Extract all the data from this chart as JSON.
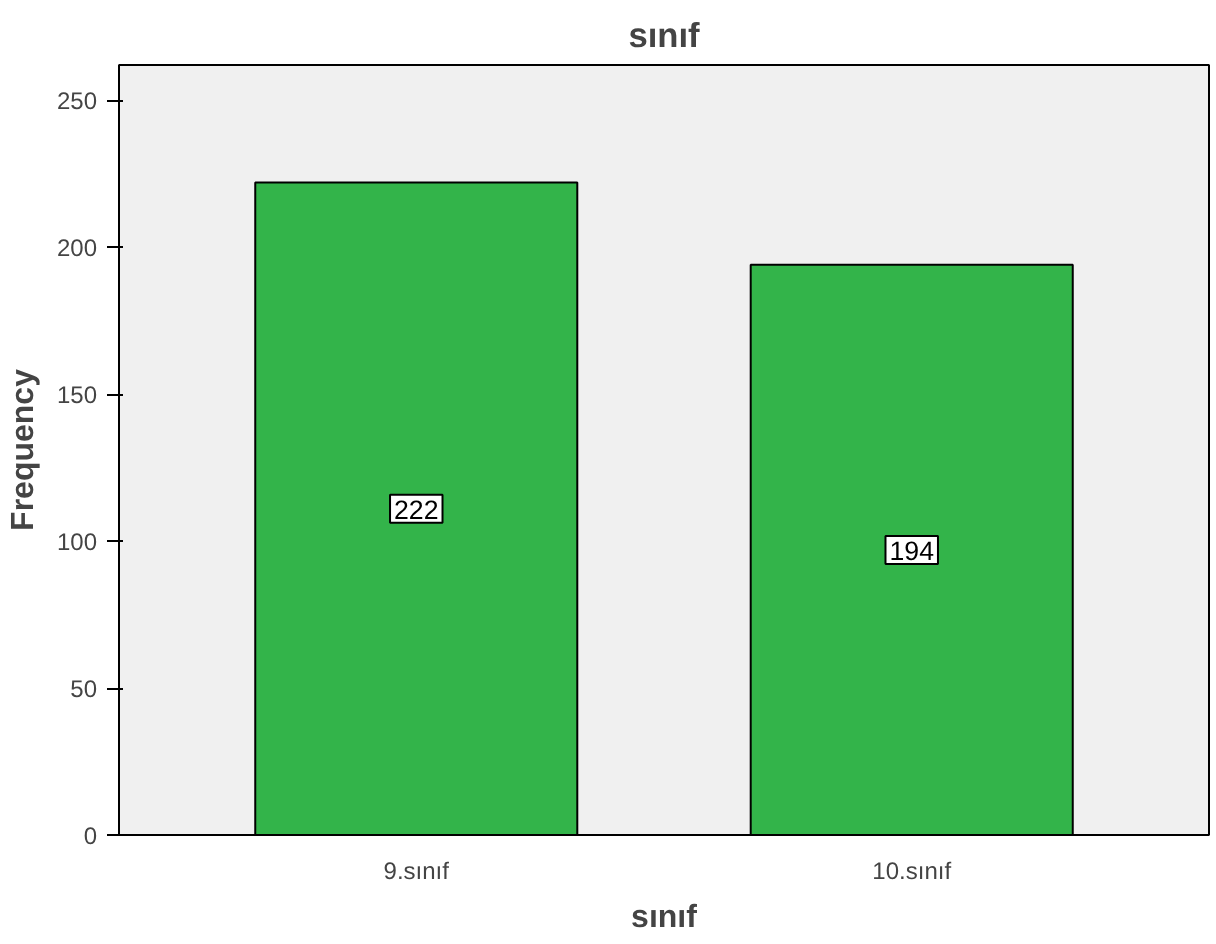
{
  "chart_data": {
    "type": "bar",
    "title": "sınıf",
    "xlabel": "sınıf",
    "ylabel": "Frequency",
    "categories": [
      "9.sınıf",
      "10.sınıf"
    ],
    "values": [
      222,
      194
    ],
    "color": "#33b44a",
    "ylim": [
      0,
      262
    ],
    "yticks": [
      0,
      50,
      100,
      150,
      200,
      250
    ],
    "grid": false,
    "data_labels": true
  }
}
